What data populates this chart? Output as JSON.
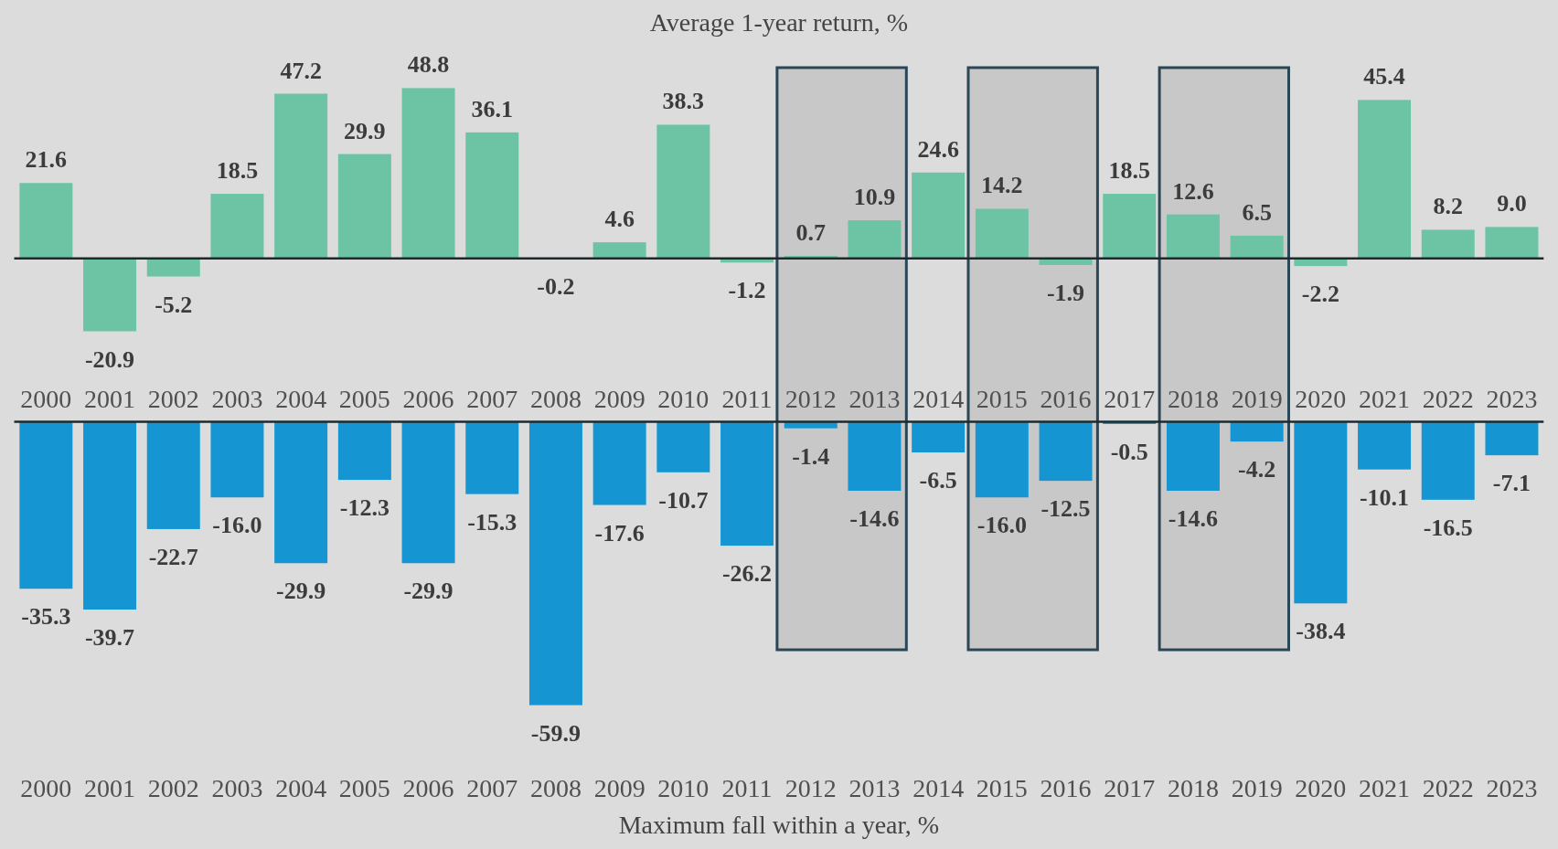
{
  "chart_data": [
    {
      "type": "bar",
      "title": "Average 1-year return, %",
      "categories": [
        "2000",
        "2001",
        "2002",
        "2003",
        "2004",
        "2005",
        "2006",
        "2007",
        "2008",
        "2009",
        "2010",
        "2011",
        "2012",
        "2013",
        "2014",
        "2015",
        "2016",
        "2017",
        "2018",
        "2019",
        "2020",
        "2021",
        "2022",
        "2023"
      ],
      "values": [
        21.6,
        -20.9,
        -5.2,
        18.5,
        47.2,
        29.9,
        48.8,
        36.1,
        -0.2,
        4.6,
        38.3,
        -1.2,
        0.7,
        10.9,
        24.6,
        14.2,
        -1.9,
        18.5,
        12.6,
        6.5,
        -2.2,
        45.4,
        8.2,
        9.0
      ],
      "value_labels": [
        "21.6",
        "-20.9",
        "-5.2",
        "18.5",
        "47.2",
        "29.9",
        "48.8",
        "36.1",
        "-0.2",
        "4.6",
        "38.3",
        "-1.2",
        "0.7",
        "10.9",
        "24.6",
        "14.2",
        "-1.9",
        "18.5",
        "12.6",
        "6.5",
        "-2.2",
        "45.4",
        "8.2",
        "9.0"
      ],
      "color": "#6cc4a4",
      "bands": [
        {
          "axis": "x",
          "from": "2012",
          "to": "2013",
          "color": "#c8c8c8"
        },
        {
          "axis": "x",
          "from": "2015",
          "to": "2016",
          "color": "#c8c8c8"
        },
        {
          "axis": "x",
          "from": "2018",
          "to": "2019",
          "color": "#c8c8c8"
        }
      ]
    },
    {
      "type": "bar",
      "xlabel": "Maximum fall within a year, %",
      "categories": [
        "2000",
        "2001",
        "2002",
        "2003",
        "2004",
        "2005",
        "2006",
        "2007",
        "2008",
        "2009",
        "2010",
        "2011",
        "2012",
        "2013",
        "2014",
        "2015",
        "2016",
        "2017",
        "2018",
        "2019",
        "2020",
        "2021",
        "2022",
        "2023"
      ],
      "values": [
        -35.3,
        -39.7,
        -22.7,
        -16.0,
        -29.9,
        -12.3,
        -29.9,
        -15.3,
        -59.9,
        -17.6,
        -10.7,
        -26.2,
        -1.4,
        -14.6,
        -6.5,
        -16.0,
        -12.5,
        -0.5,
        -14.6,
        -4.2,
        -38.4,
        -10.1,
        -16.5,
        -7.1
      ],
      "value_labels": [
        "-35.3",
        "-39.7",
        "-22.7",
        "-16.0",
        "-29.9",
        "-12.3",
        "-29.9",
        "-15.3",
        "-59.9",
        "-17.6",
        "-10.7",
        "-26.2",
        "-1.4",
        "-14.6",
        "-6.5",
        "-16.0",
        "-12.5",
        "-0.5",
        "-14.6",
        "-4.2",
        "-38.4",
        "-10.1",
        "-16.5",
        "-7.1"
      ],
      "color": "#1596d2",
      "bands": [
        {
          "axis": "x",
          "from": "2012",
          "to": "2013",
          "color": "#c8c8c8"
        },
        {
          "axis": "x",
          "from": "2015",
          "to": "2016",
          "color": "#c8c8c8"
        },
        {
          "axis": "x",
          "from": "2018",
          "to": "2019",
          "color": "#c8c8c8"
        }
      ]
    }
  ]
}
